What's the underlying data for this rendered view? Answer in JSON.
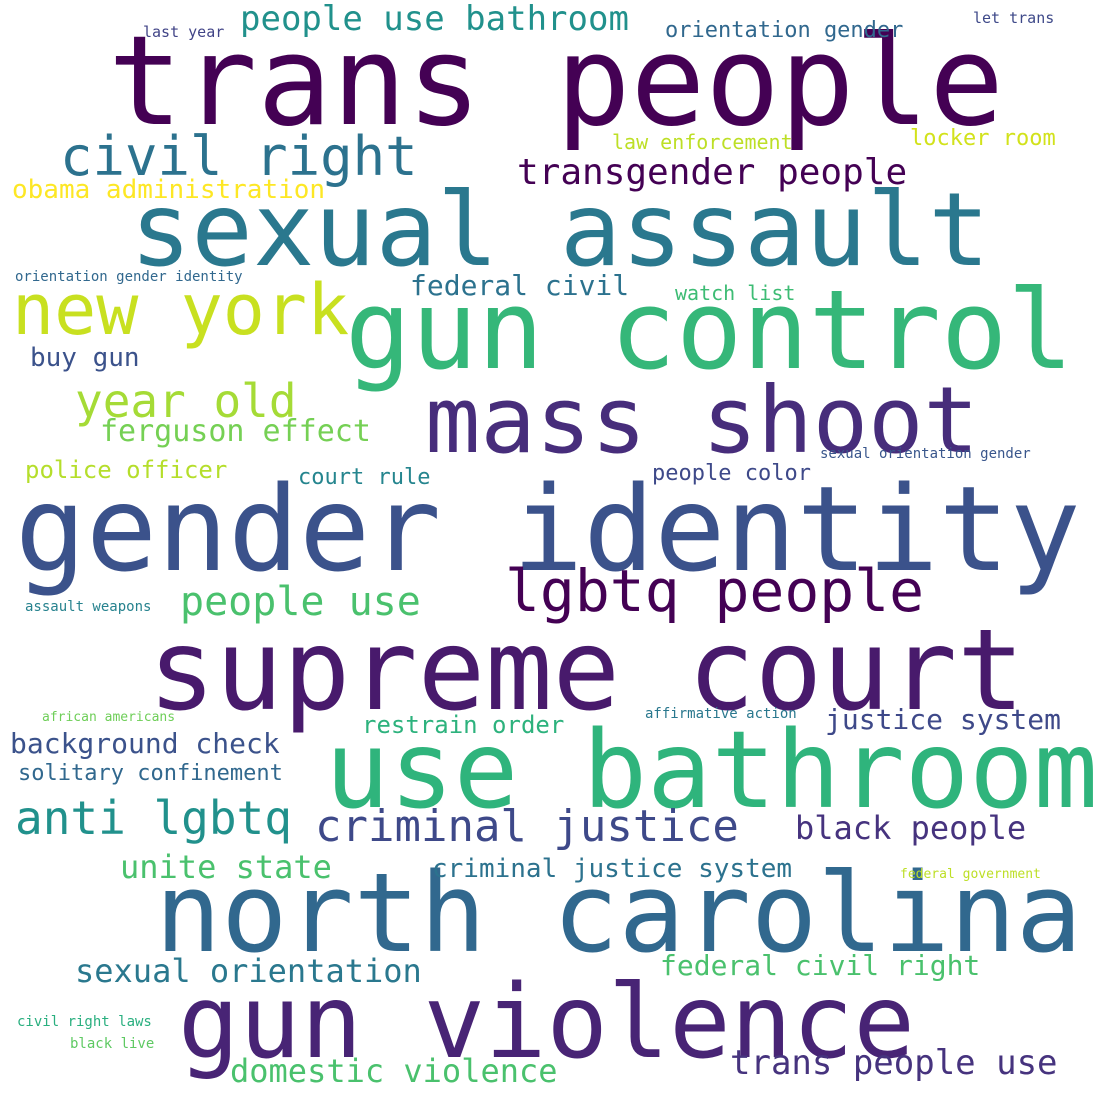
{
  "words": [
    {
      "text": "trans people",
      "color": "#440154"
    },
    {
      "text": "sexual assault",
      "color": "#2a788e"
    },
    {
      "text": "gun control",
      "color": "#35b779"
    },
    {
      "text": "mass shoot",
      "color": "#472d7b"
    },
    {
      "text": "gender identity",
      "color": "#3b528b"
    },
    {
      "text": "supreme court",
      "color": "#481a6c"
    },
    {
      "text": "use bathroom",
      "color": "#2fb47c"
    },
    {
      "text": "north carolina",
      "color": "#31688e"
    },
    {
      "text": "gun violence",
      "color": "#482475"
    },
    {
      "text": "civil right",
      "color": "#2c728e"
    },
    {
      "text": "new york",
      "color": "#c8e020"
    },
    {
      "text": "lgbtq people",
      "color": "#440154"
    },
    {
      "text": "people use bathroom",
      "color": "#21918c"
    },
    {
      "text": "transgender people",
      "color": "#440154"
    },
    {
      "text": "year old",
      "color": "#a5db36"
    },
    {
      "text": "ferguson effect",
      "color": "#75d054"
    },
    {
      "text": "people use",
      "color": "#4ac16d"
    },
    {
      "text": "criminal justice",
      "color": "#3e4989"
    },
    {
      "text": "anti lgbtq",
      "color": "#21918c"
    },
    {
      "text": "black people",
      "color": "#46337e"
    },
    {
      "text": "unite state",
      "color": "#4ac16d"
    },
    {
      "text": "sexual orientation",
      "color": "#2a788e"
    },
    {
      "text": "domestic violence",
      "color": "#4ac16d"
    },
    {
      "text": "trans people use",
      "color": "#46337e"
    },
    {
      "text": "federal civil right",
      "color": "#4ac16d"
    },
    {
      "text": "criminal justice system",
      "color": "#2c728e"
    },
    {
      "text": "background check",
      "color": "#3b528b"
    },
    {
      "text": "justice system",
      "color": "#3e4989"
    },
    {
      "text": "federal civil",
      "color": "#2c728e"
    },
    {
      "text": "restrain order",
      "color": "#2db27d"
    },
    {
      "text": "solitary confinement",
      "color": "#31688e"
    },
    {
      "text": "obama administration",
      "color": "#fde725"
    },
    {
      "text": "orientation gender",
      "color": "#31688e"
    },
    {
      "text": "law enforcement",
      "color": "#bddf26"
    },
    {
      "text": "locker room",
      "color": "#d2e21b"
    },
    {
      "text": "watch list",
      "color": "#3dbc74"
    },
    {
      "text": "buy gun",
      "color": "#3b528b"
    },
    {
      "text": "court rule",
      "color": "#25858e"
    },
    {
      "text": "people color",
      "color": "#3e4989"
    },
    {
      "text": "police officer",
      "color": "#b5de2b"
    },
    {
      "text": "last year",
      "color": "#414487"
    },
    {
      "text": "let trans",
      "color": "#3e4989"
    },
    {
      "text": "orientation gender identity",
      "color": "#31688e"
    },
    {
      "text": "sexual orientation gender",
      "color": "#39568c"
    },
    {
      "text": "assault weapons",
      "color": "#26828e"
    },
    {
      "text": "african americans",
      "color": "#6ece58"
    },
    {
      "text": "affirmative action",
      "color": "#2a788e"
    },
    {
      "text": "federal government",
      "color": "#bddf26"
    },
    {
      "text": "civil right laws",
      "color": "#29af7f"
    },
    {
      "text": "black live",
      "color": "#5ec962"
    }
  ]
}
